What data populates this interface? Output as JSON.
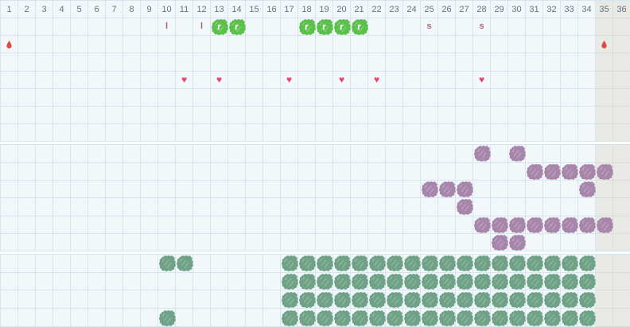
{
  "days": [
    1,
    2,
    3,
    4,
    5,
    6,
    7,
    8,
    9,
    10,
    11,
    12,
    13,
    14,
    15,
    16,
    17,
    18,
    19,
    20,
    21,
    22,
    23,
    24,
    25,
    26,
    27,
    28,
    29,
    30,
    31,
    32,
    33,
    34,
    35,
    36
  ],
  "shaded_days": [
    35,
    36
  ],
  "colors": {
    "grid_line": "#d5e6f1",
    "cell_bg": "#f2f7fa",
    "shaded_bg": "#e9e9e5",
    "shaded_line": "#dcdcd6",
    "header_text": "#68737e",
    "green_scribble": "#5bc14a",
    "purple_scribble": "#a886ab",
    "seagreen_scribble": "#6fa287",
    "heart": "#e8486e",
    "droplet": "#dc4b44",
    "letter": "#a9638f"
  },
  "symbols": {
    "l": {
      "text": "l"
    },
    "s": {
      "text": "s"
    },
    "green-scribble-r": {
      "letter": "r"
    }
  },
  "sections": [
    {
      "name": "daily-events",
      "has_header": true,
      "rows": [
        {
          "name": "events-row",
          "marks": [
            {
              "symbol": "l",
              "days": [
                10,
                12
              ]
            },
            {
              "symbol": "green-scribble-r",
              "days": [
                13,
                14,
                18,
                19,
                20,
                21
              ]
            },
            {
              "symbol": "s",
              "days": [
                25,
                28
              ]
            }
          ]
        },
        {
          "name": "period-row",
          "marks": [
            {
              "symbol": "droplet",
              "days": [
                1,
                35
              ]
            }
          ]
        },
        {
          "name": "spacer-row-1",
          "marks": []
        },
        {
          "name": "hearts-row",
          "marks": [
            {
              "symbol": "heart",
              "days": [
                11,
                13,
                17,
                20,
                22,
                28
              ]
            }
          ]
        },
        {
          "name": "spacer-row-2",
          "marks": []
        },
        {
          "name": "spacer-row-3",
          "marks": []
        },
        {
          "name": "spacer-row-4",
          "marks": []
        }
      ]
    },
    {
      "name": "purple-tracker",
      "has_header": false,
      "rows": [
        {
          "name": "purple-row-1",
          "marks": [
            {
              "symbol": "purple-scribble",
              "days": [
                28,
                30
              ]
            }
          ]
        },
        {
          "name": "purple-row-2",
          "marks": [
            {
              "symbol": "purple-scribble",
              "days": [
                31,
                32,
                33,
                34,
                35
              ]
            }
          ]
        },
        {
          "name": "purple-row-3",
          "marks": [
            {
              "symbol": "purple-scribble",
              "days": [
                25,
                26,
                27,
                34
              ]
            }
          ]
        },
        {
          "name": "purple-row-4",
          "marks": [
            {
              "symbol": "purple-scribble",
              "days": [
                27
              ]
            }
          ]
        },
        {
          "name": "purple-row-5",
          "marks": [
            {
              "symbol": "purple-scribble",
              "days": [
                28,
                29,
                30,
                31,
                32,
                33,
                34,
                35
              ]
            }
          ]
        },
        {
          "name": "purple-row-6",
          "marks": [
            {
              "symbol": "purple-scribble",
              "days": [
                29,
                30
              ]
            }
          ]
        }
      ]
    },
    {
      "name": "green-tracker",
      "has_header": false,
      "rows": [
        {
          "name": "green-row-1",
          "marks": [
            {
              "symbol": "green-scribble",
              "days": [
                10,
                11,
                17,
                18,
                19,
                20,
                21,
                22,
                23,
                24,
                25,
                26,
                27,
                28,
                29,
                30,
                31,
                32,
                33,
                34
              ]
            }
          ]
        },
        {
          "name": "green-row-2",
          "marks": [
            {
              "symbol": "green-scribble",
              "days": [
                17,
                18,
                19,
                20,
                21,
                22,
                23,
                24,
                25,
                26,
                27,
                28,
                29,
                30,
                31,
                32,
                33,
                34
              ]
            }
          ]
        },
        {
          "name": "green-row-3",
          "marks": [
            {
              "symbol": "green-scribble",
              "days": [
                17,
                18,
                19,
                20,
                21,
                22,
                23,
                24,
                25,
                26,
                27,
                28,
                29,
                30,
                31,
                32,
                33,
                34
              ]
            }
          ]
        },
        {
          "name": "green-row-4",
          "marks": [
            {
              "symbol": "green-scribble",
              "days": [
                10,
                17,
                18,
                19,
                20,
                21,
                22,
                23,
                24,
                25,
                26,
                27,
                28,
                29,
                30,
                31,
                32,
                33,
                34
              ]
            }
          ]
        }
      ]
    }
  ]
}
